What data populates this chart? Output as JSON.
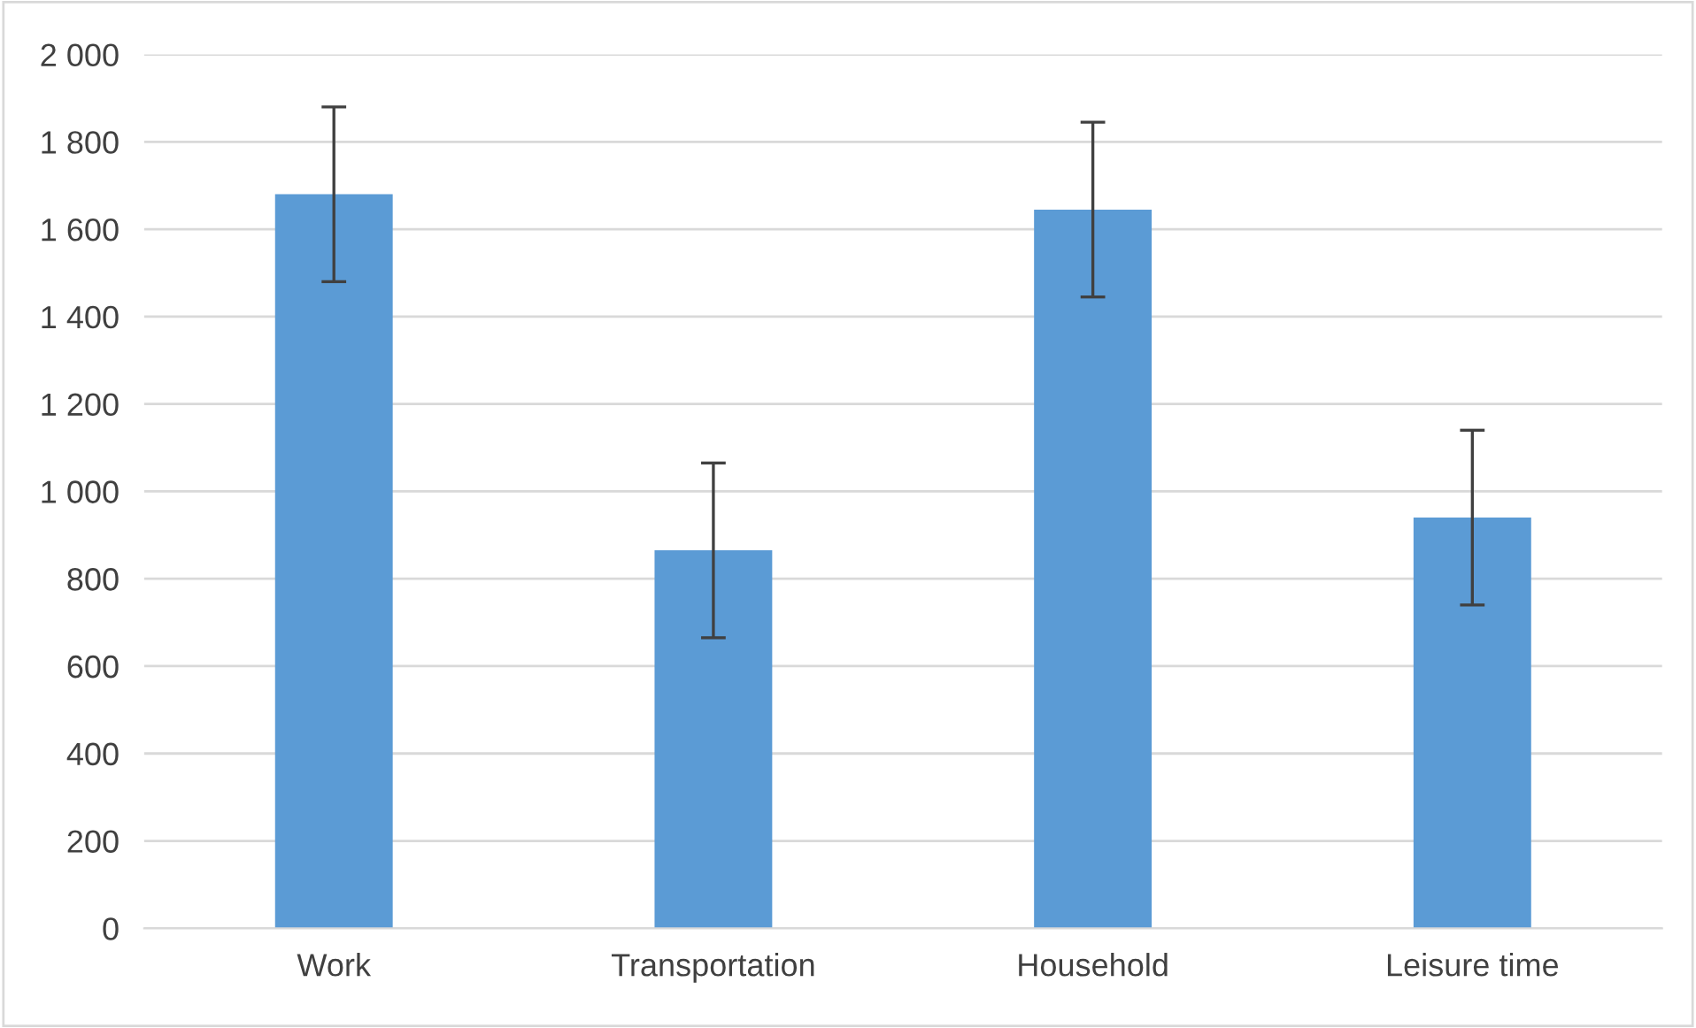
{
  "chart_data": {
    "type": "bar",
    "categories": [
      "Work",
      "Transportation",
      "Household",
      "Leisure time"
    ],
    "values": [
      1680,
      865,
      1645,
      940
    ],
    "errors": [
      200,
      200,
      200,
      200
    ],
    "color": "#5b9bd5",
    "ylim": [
      0,
      2000
    ],
    "yticks": [
      0,
      200,
      400,
      600,
      800,
      {
        "value": 1000,
        "label": "1 000"
      },
      {
        "value": 1200,
        "label": "1 200"
      },
      {
        "value": 1400,
        "label": "1 400"
      },
      {
        "value": 1600,
        "label": "1 600"
      },
      {
        "value": 1800,
        "label": "1 800"
      },
      {
        "value": 2000,
        "label": "2 000"
      }
    ],
    "grid": "y"
  }
}
